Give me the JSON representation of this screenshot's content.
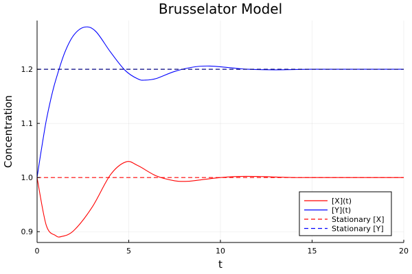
{
  "chart_data": {
    "type": "line",
    "title": "Brusselator Model",
    "xlabel": "t",
    "ylabel": "Concentration",
    "xlim": [
      0,
      20
    ],
    "ylim": [
      0.88,
      1.29
    ],
    "x_ticks": [
      0,
      5,
      10,
      15,
      20
    ],
    "y_ticks": [
      0.9,
      1.0,
      1.1,
      1.2
    ],
    "x_tick_labels": [
      "0",
      "5",
      "10",
      "15",
      "20"
    ],
    "y_tick_labels": [
      "0.9",
      "1.0",
      "1.1",
      "1.2"
    ],
    "grid": true,
    "legend_position": "bottom-right",
    "series": [
      {
        "name": "[X](t)",
        "color": "#ff0000",
        "style": "solid",
        "x": [
          0,
          0.5,
          1.0,
          1.33,
          2.0,
          3.0,
          4.0,
          4.85,
          5.5,
          6.5,
          7.5,
          8.2,
          9.0,
          10.0,
          11.0,
          12.0,
          13.0,
          14.0,
          15.0,
          17.0,
          20.0
        ],
        "y": [
          1.0,
          0.912,
          0.893,
          0.891,
          0.902,
          0.945,
          1.005,
          1.029,
          1.022,
          1.003,
          0.994,
          0.993,
          0.996,
          1.0,
          1.002,
          1.002,
          1.001,
          1.0,
          1.0,
          1.0,
          1.0
        ]
      },
      {
        "name": "[Y](t)",
        "color": "#0000ff",
        "style": "solid",
        "x": [
          0,
          0.25,
          0.5,
          0.75,
          1.0,
          1.5,
          2.0,
          2.6,
          3.2,
          4.0,
          4.8,
          5.5,
          5.9,
          6.5,
          7.5,
          8.5,
          9.4,
          10.5,
          11.5,
          13.0,
          15.0,
          17.0,
          20.0
        ],
        "y": [
          1.0,
          1.055,
          1.105,
          1.145,
          1.178,
          1.23,
          1.263,
          1.278,
          1.27,
          1.232,
          1.198,
          1.182,
          1.18,
          1.183,
          1.196,
          1.204,
          1.206,
          1.203,
          1.2,
          1.199,
          1.2,
          1.2,
          1.2
        ]
      },
      {
        "name": "Stationary [X]",
        "color": "#ff0000",
        "style": "dashed",
        "x": [
          0,
          20
        ],
        "y": [
          1.0,
          1.0
        ]
      },
      {
        "name": "Stationary [Y]",
        "color": "#0000ff",
        "style": "dashed",
        "x": [
          0,
          20
        ],
        "y": [
          1.2,
          1.2
        ]
      }
    ]
  }
}
